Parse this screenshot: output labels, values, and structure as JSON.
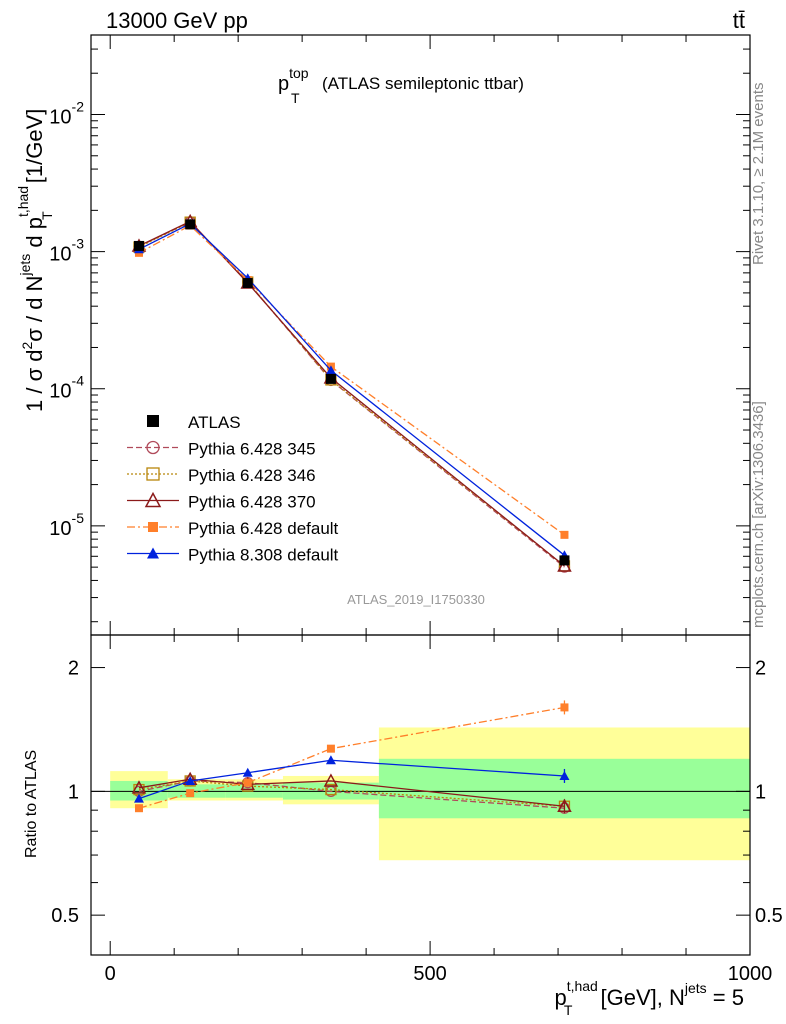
{
  "header": {
    "left": "13000 GeV pp",
    "right": "tt̄"
  },
  "title": {
    "main": "p",
    "sup": "top",
    "sub": "T",
    "suffix": "(ATLAS semileptonic ttbar)"
  },
  "side_labels": {
    "rivet": "Rivet 3.1.10, ≥ 2.1M events",
    "mcplots": "mcplots.cern.ch [arXiv:1306.3436]"
  },
  "analysis_id": "ATLAS_2019_I1750330",
  "main_ylabel": {
    "a": "1 / σ d",
    "b": "2",
    "c": "σ /  d N",
    "d": "jets",
    "e": " d p",
    "f": "t,had",
    "g": "T",
    "h": " [1/GeV]"
  },
  "ratio_ylabel": "Ratio to ATLAS",
  "xlabel": {
    "p": "p",
    "sup": "t,had",
    "sub": "T",
    "mid": " [GeV], N",
    "sup2": "jets",
    "tail": " = 5"
  },
  "colors": {
    "data": "#000000",
    "py345": "#b04a5a",
    "py346": "#b8860b",
    "py370": "#8b1a1a",
    "py6def": "#ff7f2a",
    "py8def": "#0022dd",
    "band_green": "#99ff99",
    "band_yellow": "#ffff99"
  },
  "chart_data": {
    "type": "line",
    "xlim": [
      -30,
      1000
    ],
    "main_ylim": [
      1.6e-06,
      0.038
    ],
    "ratio_ylim": [
      0.4,
      2.4
    ],
    "main_yscale": "log",
    "ratio_yscale": "log",
    "x_ticks": [
      0,
      500,
      1000
    ],
    "x_tick_labels": [
      "0",
      "500",
      "1000"
    ],
    "main_y_ticks": [
      1e-05,
      0.0001,
      0.001,
      0.01
    ],
    "main_y_tick_labels": [
      {
        "base": "10",
        "exp": "-5"
      },
      {
        "base": "10",
        "exp": "-4"
      },
      {
        "base": "10",
        "exp": "-3"
      },
      {
        "base": "10",
        "exp": "-2"
      }
    ],
    "ratio_y_ticks": [
      0.5,
      1,
      2
    ],
    "ratio_y_tick_labels": [
      "0.5",
      "1",
      "2"
    ],
    "bins": [
      [
        0,
        90
      ],
      [
        90,
        180
      ],
      [
        180,
        270
      ],
      [
        270,
        420
      ],
      [
        420,
        1000
      ]
    ],
    "band_green": [
      [
        0.95,
        1.06
      ],
      [
        0.965,
        1.04
      ],
      [
        0.965,
        1.04
      ],
      [
        0.955,
        1.05
      ],
      [
        0.86,
        1.2
      ]
    ],
    "band_yellow": [
      [
        0.91,
        1.12
      ],
      [
        0.95,
        1.07
      ],
      [
        0.95,
        1.07
      ],
      [
        0.93,
        1.09
      ],
      [
        0.68,
        1.43
      ]
    ],
    "x": [
      45,
      125,
      215,
      345,
      710
    ],
    "series": [
      {
        "name": "ATLAS",
        "key": "data",
        "values": [
          0.0011,
          0.00158,
          0.00059,
          0.000118,
          5.6e-06
        ],
        "ratio": [
          1,
          1,
          1,
          1,
          1
        ],
        "marker": "square",
        "dash": "none"
      },
      {
        "name": "Pythia 6.428 345",
        "key": "py345",
        "values": [
          0.00109,
          0.00165,
          0.0006,
          0.000115,
          5e-06
        ],
        "ratio": [
          1.0,
          1.06,
          1.05,
          1.0,
          0.91
        ],
        "marker": "circle-open",
        "dash": "6,3"
      },
      {
        "name": "Pythia 6.428 346",
        "key": "py346",
        "values": [
          0.00108,
          0.00164,
          0.0006,
          0.000116,
          5.1e-06
        ],
        "ratio": [
          1.01,
          1.06,
          1.03,
          1.01,
          0.92
        ],
        "marker": "square-open",
        "dash": "2,2"
      },
      {
        "name": "Pythia 6.428 370",
        "key": "py370",
        "values": [
          0.0011,
          0.00166,
          0.00059,
          0.00012,
          5.1e-06
        ],
        "ratio": [
          1.02,
          1.07,
          1.04,
          1.06,
          0.92
        ],
        "marker": "triangle-open",
        "dash": "none"
      },
      {
        "name": "Pythia 6.428 default",
        "key": "py6def",
        "values": [
          0.00098,
          0.00155,
          0.00062,
          0.000145,
          8.6e-06
        ],
        "ratio": [
          0.91,
          0.99,
          1.05,
          1.27,
          1.6
        ],
        "marker": "square-filled",
        "dash": "8,3,2,3"
      },
      {
        "name": "Pythia 8.308 default",
        "key": "py8def",
        "values": [
          0.00104,
          0.0016,
          0.00064,
          0.000136,
          6.1e-06
        ],
        "ratio": [
          0.96,
          1.06,
          1.11,
          1.19,
          1.09
        ],
        "marker": "triangle-filled",
        "dash": "none"
      }
    ]
  }
}
